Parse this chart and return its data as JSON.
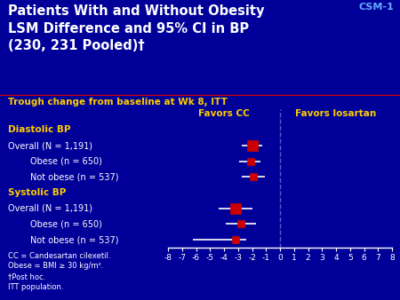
{
  "title_line1": "Patients With and Without Obesity",
  "title_line2": "LSM Difference and 95% CI in BP",
  "title_line3": "(230, 231 Pooled)†",
  "csm_label": "CSM-1",
  "subtitle": "Trough change from baseline at Wk 8, ITT",
  "favors_cc": "Favors CC",
  "favors_losartan": "Favors losartan",
  "bg_color": "#000099",
  "title_color": "#ffffff",
  "subtitle_color": "#ffcc00",
  "header_label_color": "#ffcc00",
  "row_label_color": "#ffffff",
  "axis_color": "#ffffff",
  "marker_color": "#cc0000",
  "ci_color": "#ffffff",
  "vline_color": "#6666cc",
  "redline_color": "#cc0000",
  "csm_color": "#66aaff",
  "data_rows": [
    {
      "label": "Diastolic BP",
      "indent": false,
      "is_header": true,
      "mean": null,
      "ci_low": null,
      "ci_high": null,
      "large_marker": false
    },
    {
      "label": "Overall (N = 1,191)",
      "indent": false,
      "is_header": false,
      "mean": -2.0,
      "ci_low": -2.7,
      "ci_high": -1.3,
      "large_marker": true
    },
    {
      "label": "Obese (n = 650)",
      "indent": true,
      "is_header": false,
      "mean": -2.1,
      "ci_low": -2.9,
      "ci_high": -1.4,
      "large_marker": false
    },
    {
      "label": "Not obese (n = 537)",
      "indent": true,
      "is_header": false,
      "mean": -1.9,
      "ci_low": -2.7,
      "ci_high": -1.1,
      "large_marker": false
    },
    {
      "label": "Systolic BP",
      "indent": false,
      "is_header": true,
      "mean": null,
      "ci_low": null,
      "ci_high": null,
      "large_marker": false
    },
    {
      "label": "Overall (N = 1,191)",
      "indent": false,
      "is_header": false,
      "mean": -3.2,
      "ci_low": -4.4,
      "ci_high": -2.0,
      "large_marker": true
    },
    {
      "label": "Obese (n = 650)",
      "indent": true,
      "is_header": false,
      "mean": -2.8,
      "ci_low": -3.9,
      "ci_high": -1.7,
      "large_marker": false
    },
    {
      "label": "Not obese (n = 537)",
      "indent": true,
      "is_header": false,
      "mean": -3.2,
      "ci_low": -6.2,
      "ci_high": -2.4,
      "large_marker": false
    }
  ],
  "xmin": -8,
  "xmax": 8,
  "xticks": [
    -8,
    -7,
    -6,
    -5,
    -4,
    -3,
    -2,
    -1,
    0,
    1,
    2,
    3,
    4,
    5,
    6,
    7,
    8
  ],
  "footer_lines": [
    "CC = Candesartan cilexetil.",
    "Obese = BMI ≥ 30 kg/m².",
    "†Post hoc.",
    "ITT population."
  ]
}
